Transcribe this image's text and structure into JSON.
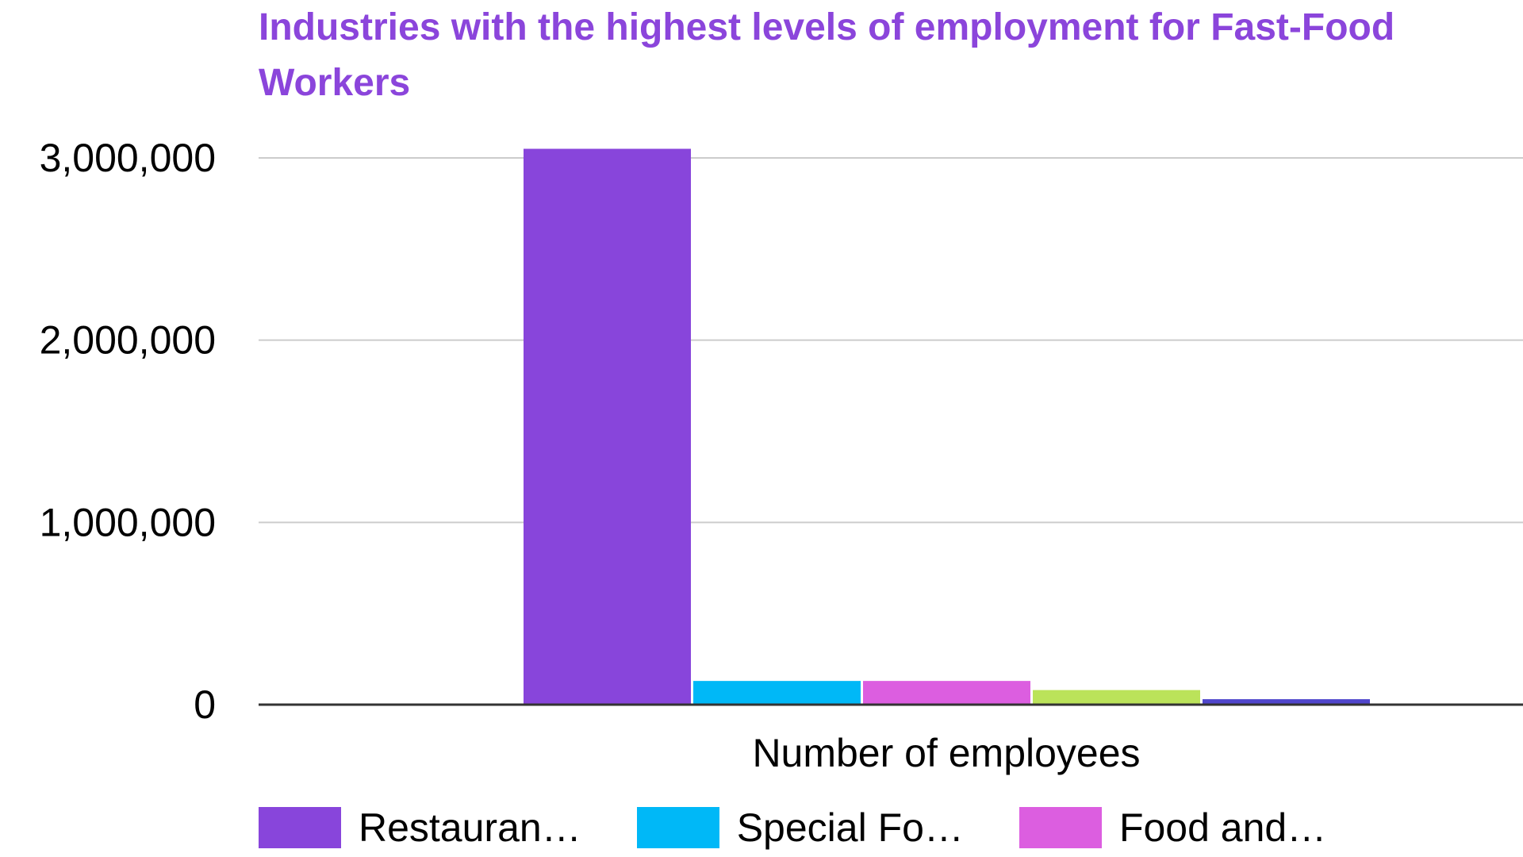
{
  "chart_data": {
    "type": "bar",
    "title": "Industries with the highest levels of employment for Fast-Food Workers",
    "xlabel": "Number of employees",
    "ylabel": "",
    "ylim": [
      0,
      3000000
    ],
    "yticks": [
      {
        "value": 0,
        "label": "0"
      },
      {
        "value": 1000000,
        "label": "1,000,000"
      },
      {
        "value": 2000000,
        "label": "2,000,000"
      },
      {
        "value": 3000000,
        "label": "3,000,000"
      }
    ],
    "grid": true,
    "legend_position": "bottom",
    "categories": [
      "Number of employees"
    ],
    "series": [
      {
        "name": "Restauran…",
        "color": "#8845db",
        "values": [
          3050000
        ]
      },
      {
        "name": "Special Fo…",
        "color": "#00b8f7",
        "values": [
          130000
        ]
      },
      {
        "name": "Food and…",
        "color": "#dc5ee0",
        "values": [
          130000
        ]
      },
      {
        "values": [
          80000
        ],
        "color": "#bbe35a"
      },
      {
        "values": [
          30000
        ],
        "color": "#5046cc"
      }
    ]
  }
}
